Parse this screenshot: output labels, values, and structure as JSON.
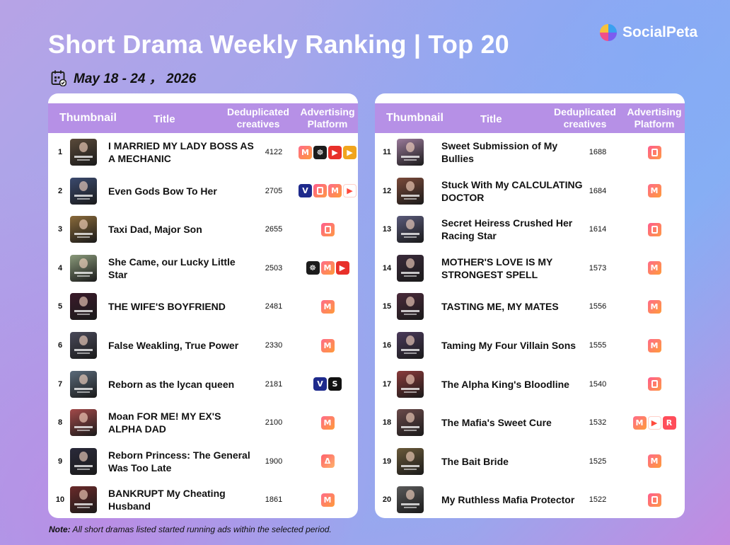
{
  "header": {
    "title": "Short Drama Weekly Ranking | Top 20",
    "date": "May 18 - 24 ， 2026",
    "brand": "SocialPeta"
  },
  "table_headers": {
    "thumbnail": "Thumbnail",
    "title": "Title",
    "deduplicated": "Deduplicated creatives",
    "platform": "Advertising Platform"
  },
  "left_rows": [
    {
      "rank": "1",
      "title": "I MARRIED MY LADY BOSS AS A MECHANIC",
      "creatives": "4122",
      "thumb_color": "#5a4a3a",
      "platforms": [
        "m-icon",
        "reel-icon",
        "red-play-icon",
        "yellow-play-icon"
      ]
    },
    {
      "rank": "2",
      "title": "Even Gods Bow To Her",
      "creatives": "2705",
      "thumb_color": "#3b4a6e",
      "platforms": [
        "v-icon",
        "d-icon",
        "m-icon",
        "play-icon"
      ]
    },
    {
      "rank": "3",
      "title": "Taxi Dad, Major Son",
      "creatives": "2655",
      "thumb_color": "#8a6a3a",
      "platforms": [
        "d-icon"
      ]
    },
    {
      "rank": "4",
      "title": "She Came, our Lucky Little Star",
      "creatives": "2503",
      "thumb_color": "#8a9a7a",
      "platforms": [
        "reel-icon",
        "m-icon",
        "red-play-icon"
      ]
    },
    {
      "rank": "5",
      "title": "THE WIFE'S BOYFRIEND",
      "creatives": "2481",
      "thumb_color": "#3a1a2a",
      "platforms": [
        "m-icon"
      ]
    },
    {
      "rank": "6",
      "title": "False Weakling, True Power",
      "creatives": "2330",
      "thumb_color": "#4a4a5a",
      "platforms": [
        "m-icon"
      ]
    },
    {
      "rank": "7",
      "title": "Reborn as the lycan queen",
      "creatives": "2181",
      "thumb_color": "#5a6a7a",
      "platforms": [
        "v-icon",
        "s-icon"
      ]
    },
    {
      "rank": "8",
      "title": "Moan FOR ME! MY EX'S ALPHA DAD",
      "creatives": "2100",
      "thumb_color": "#a34a4a",
      "platforms": [
        "m-icon"
      ]
    },
    {
      "rank": "9",
      "title": "Reborn Princess: The General Was Too Late",
      "creatives": "1900",
      "thumb_color": "#2a2a3a",
      "platforms": [
        "a-icon"
      ]
    },
    {
      "rank": "10",
      "title": "BANKRUPT My Cheating Husband",
      "creatives": "1861",
      "thumb_color": "#6a2a2a",
      "platforms": [
        "m-icon"
      ]
    }
  ],
  "right_rows": [
    {
      "rank": "11",
      "title": "Sweet Submission of My Bullies",
      "creatives": "1688",
      "thumb_color": "#9a7a9a",
      "platforms": [
        "d-icon"
      ]
    },
    {
      "rank": "12",
      "title": "Stuck With My CALCULATING DOCTOR",
      "creatives": "1684",
      "thumb_color": "#7a4a3a",
      "platforms": [
        "m-icon"
      ]
    },
    {
      "rank": "13",
      "title": "Secret Heiress Crushed Her Racing Star",
      "creatives": "1614",
      "thumb_color": "#5a5a7a",
      "platforms": [
        "d-icon"
      ]
    },
    {
      "rank": "14",
      "title": "MOTHER'S LOVE IS MY STRONGEST SPELL",
      "creatives": "1573",
      "thumb_color": "#3a2a3a",
      "platforms": [
        "m-icon"
      ]
    },
    {
      "rank": "15",
      "title": "TASTING ME, MY MATES",
      "creatives": "1556",
      "thumb_color": "#4a2a3a",
      "platforms": [
        "m-icon"
      ]
    },
    {
      "rank": "16",
      "title": "Taming My Four Villain Sons",
      "creatives": "1555",
      "thumb_color": "#4a3a5a",
      "platforms": [
        "m-icon"
      ]
    },
    {
      "rank": "17",
      "title": "The Alpha King's Bloodline",
      "creatives": "1540",
      "thumb_color": "#8a3a3a",
      "platforms": [
        "d-icon"
      ]
    },
    {
      "rank": "18",
      "title": "The Mafia's Sweet Cure",
      "creatives": "1532",
      "thumb_color": "#6a4a4a",
      "platforms": [
        "m-icon",
        "play-icon",
        "r-icon"
      ]
    },
    {
      "rank": "19",
      "title": "The Bait Bride",
      "creatives": "1525",
      "thumb_color": "#6a5a3a",
      "platforms": [
        "m-icon"
      ]
    },
    {
      "rank": "20",
      "title": "My Ruthless Mafia Protector",
      "creatives": "1522",
      "thumb_color": "#5a5a5a",
      "platforms": [
        "d-icon"
      ]
    }
  ],
  "note": {
    "label": "Note:",
    "text": " All short dramas listed started running ads within the selected period."
  }
}
